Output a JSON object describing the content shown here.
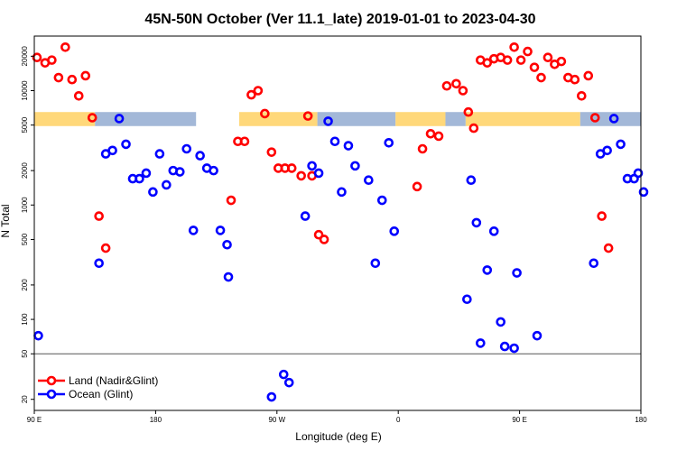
{
  "chart_data": {
    "type": "scatter",
    "title": "45N-50N October (Ver 11.1_late)   2019-01-01 to 2023-04-30",
    "xlabel": "Longitude (deg E)",
    "ylabel": "N Total",
    "y_scale": "log",
    "ylim": [
      16,
      30000
    ],
    "reference_line_y": 50,
    "x_ticks": [
      {
        "label": "90 E"
      },
      {
        "label": "180"
      },
      {
        "label": "90 W"
      },
      {
        "label": "0"
      },
      {
        "label": "90 E"
      },
      {
        "label": "180"
      }
    ],
    "y_ticks": [
      20,
      50,
      100,
      200,
      500,
      1000,
      2000,
      5000,
      10000,
      20000
    ],
    "legend": {
      "position": "bottom-left",
      "entries": [
        {
          "label": "Land (Nadir&Glint)",
          "color": "#ff0000"
        },
        {
          "label": "Ocean (Glint)",
          "color": "#0000ff"
        }
      ]
    },
    "band": {
      "y_range": [
        4900,
        6500
      ],
      "segments": [
        {
          "x": [
            90,
            135
          ],
          "color": "#ffd87a"
        },
        {
          "x": [
            135,
            210
          ],
          "color": "#a3b8d8"
        },
        {
          "x": [
            242,
            300
          ],
          "color": "#ffd87a"
        },
        {
          "x": [
            300,
            358
          ],
          "color": "#a3b8d8"
        },
        {
          "x": [
            358,
            395
          ],
          "color": "#ffd87a"
        },
        {
          "x": [
            395,
            410
          ],
          "color": "#a3b8d8"
        },
        {
          "x": [
            410,
            495
          ],
          "color": "#ffd87a"
        },
        {
          "x": [
            495,
            540
          ],
          "color": "#a3b8d8"
        }
      ]
    },
    "series": [
      {
        "name": "Land (Nadir&Glint)",
        "color": "#ff0000",
        "points": [
          [
            92,
            19500
          ],
          [
            98,
            17500
          ],
          [
            103,
            18500
          ],
          [
            108,
            13000
          ],
          [
            113,
            24000
          ],
          [
            118,
            12500
          ],
          [
            123,
            9000
          ],
          [
            128,
            13500
          ],
          [
            133,
            5800
          ],
          [
            138,
            800
          ],
          [
            143,
            420
          ],
          [
            236,
            1100
          ],
          [
            241,
            3600
          ],
          [
            246,
            3600
          ],
          [
            251,
            9200
          ],
          [
            256,
            10000
          ],
          [
            261,
            6300
          ],
          [
            266,
            2900
          ],
          [
            271,
            2100
          ],
          [
            276,
            2100
          ],
          [
            281,
            2100
          ],
          [
            288,
            1800
          ],
          [
            293,
            6000
          ],
          [
            296,
            1800
          ],
          [
            301,
            550
          ],
          [
            305,
            500
          ],
          [
            374,
            1450
          ],
          [
            378,
            3100
          ],
          [
            384,
            4200
          ],
          [
            390,
            4000
          ],
          [
            396,
            11000
          ],
          [
            403,
            11500
          ],
          [
            408,
            10000
          ],
          [
            412,
            6500
          ],
          [
            416,
            4700
          ],
          [
            421,
            18500
          ],
          [
            426,
            17500
          ],
          [
            431,
            19000
          ],
          [
            436,
            19500
          ],
          [
            441,
            18500
          ],
          [
            446,
            24000
          ],
          [
            451,
            18500
          ],
          [
            456,
            22000
          ],
          [
            461,
            16000
          ],
          [
            466,
            13000
          ],
          [
            471,
            19500
          ],
          [
            476,
            17000
          ],
          [
            481,
            18000
          ],
          [
            486,
            13000
          ],
          [
            491,
            12500
          ],
          [
            496,
            9000
          ],
          [
            501,
            13500
          ],
          [
            506,
            5800
          ],
          [
            511,
            800
          ],
          [
            516,
            420
          ]
        ]
      },
      {
        "name": "Ocean (Glint)",
        "color": "#0000ff",
        "points": [
          [
            93,
            72
          ],
          [
            138,
            310
          ],
          [
            143,
            2800
          ],
          [
            148,
            3000
          ],
          [
            153,
            5700
          ],
          [
            158,
            3400
          ],
          [
            163,
            1700
          ],
          [
            168,
            1700
          ],
          [
            173,
            1900
          ],
          [
            178,
            1300
          ],
          [
            183,
            2800
          ],
          [
            188,
            1500
          ],
          [
            193,
            2000
          ],
          [
            198,
            1950
          ],
          [
            203,
            3100
          ],
          [
            208,
            600
          ],
          [
            213,
            2700
          ],
          [
            218,
            2100
          ],
          [
            223,
            2000
          ],
          [
            228,
            600
          ],
          [
            233,
            450
          ],
          [
            234,
            235
          ],
          [
            266,
            21
          ],
          [
            275,
            33
          ],
          [
            279,
            28
          ],
          [
            291,
            800
          ],
          [
            296,
            2200
          ],
          [
            301,
            1900
          ],
          [
            308,
            5400
          ],
          [
            313,
            3600
          ],
          [
            318,
            1300
          ],
          [
            323,
            3300
          ],
          [
            328,
            2200
          ],
          [
            338,
            1650
          ],
          [
            343,
            310
          ],
          [
            348,
            1100
          ],
          [
            353,
            3500
          ],
          [
            357,
            590
          ],
          [
            411,
            150
          ],
          [
            414,
            1650
          ],
          [
            418,
            700
          ],
          [
            421,
            62
          ],
          [
            426,
            270
          ],
          [
            431,
            590
          ],
          [
            436,
            95
          ],
          [
            439,
            58
          ],
          [
            446,
            56
          ],
          [
            448,
            255
          ],
          [
            463,
            72
          ],
          [
            505,
            310
          ],
          [
            510,
            2800
          ],
          [
            515,
            3000
          ],
          [
            520,
            5700
          ],
          [
            525,
            3400
          ],
          [
            530,
            1700
          ],
          [
            535,
            1700
          ],
          [
            538,
            1900
          ],
          [
            542,
            1300
          ]
        ]
      }
    ]
  }
}
